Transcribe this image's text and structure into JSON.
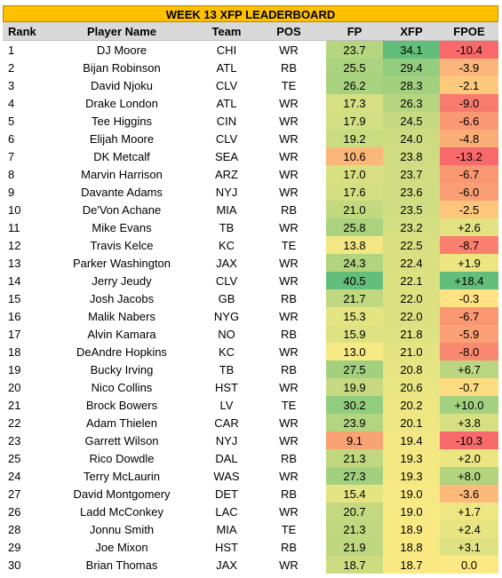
{
  "title": "WEEK 13 XFP LEADERBOARD",
  "columns": [
    "Rank",
    "Player Name",
    "Team",
    "POS",
    "FP",
    "XFP",
    "FPOE"
  ],
  "rows": [
    {
      "rank": "1",
      "player": "DJ Moore",
      "team": "CHI",
      "pos": "WR",
      "fp": "23.7",
      "xfp": "34.1",
      "fpoe": "-10.4",
      "fp_color": "#b5d580",
      "xfp_color": "#63be7b",
      "fpoe_color": "#f8696b"
    },
    {
      "rank": "2",
      "player": "Bijan Robinson",
      "team": "ATL",
      "pos": "RB",
      "fp": "25.5",
      "xfp": "29.4",
      "fpoe": "-3.9",
      "fp_color": "#acd37f",
      "xfp_color": "#95cd7e",
      "fpoe_color": "#fcb57a"
    },
    {
      "rank": "3",
      "player": "David Njoku",
      "team": "CLV",
      "pos": "TE",
      "fp": "26.2",
      "xfp": "28.3",
      "fpoe": "-2.1",
      "fp_color": "#a9d27f",
      "xfp_color": "#a1d07f",
      "fpoe_color": "#fdca7d"
    },
    {
      "rank": "4",
      "player": "Drake London",
      "team": "ATL",
      "pos": "WR",
      "fp": "17.3",
      "xfp": "26.3",
      "fpoe": "-9.0",
      "fp_color": "#d6e082",
      "xfp_color": "#b6d580",
      "fpoe_color": "#f97b6e"
    },
    {
      "rank": "5",
      "player": "Tee Higgins",
      "team": "CIN",
      "pos": "WR",
      "fp": "17.9",
      "xfp": "24.5",
      "fpoe": "-6.6",
      "fp_color": "#d2df82",
      "xfp_color": "#c8da81",
      "fpoe_color": "#fa9873"
    },
    {
      "rank": "6",
      "player": "Elijah Moore",
      "team": "CLV",
      "pos": "WR",
      "fp": "19.2",
      "xfp": "24.0",
      "fpoe": "-4.8",
      "fp_color": "#cbdb81",
      "xfp_color": "#cddc81",
      "fpoe_color": "#fbad78"
    },
    {
      "rank": "7",
      "player": "DK Metcalf",
      "team": "SEA",
      "pos": "WR",
      "fp": "10.6",
      "xfp": "23.8",
      "fpoe": "-13.2",
      "fp_color": "#fbb679",
      "xfp_color": "#cfdc81",
      "fpoe_color": "#f8696b"
    },
    {
      "rank": "8",
      "player": "Marvin Harrison",
      "team": "ARZ",
      "pos": "WR",
      "fp": "17.0",
      "xfp": "23.7",
      "fpoe": "-6.7",
      "fp_color": "#d8e082",
      "xfp_color": "#d0dd82",
      "fpoe_color": "#fa9773"
    },
    {
      "rank": "9",
      "player": "Davante Adams",
      "team": "NYJ",
      "pos": "WR",
      "fp": "17.6",
      "xfp": "23.6",
      "fpoe": "-6.0",
      "fp_color": "#d4df82",
      "xfp_color": "#d1dd82",
      "fpoe_color": "#fa9f75"
    },
    {
      "rank": "10",
      "player": "De'Von Achane",
      "team": "MIA",
      "pos": "RB",
      "fp": "21.0",
      "xfp": "23.5",
      "fpoe": "-2.5",
      "fp_color": "#c3d980",
      "xfp_color": "#d1dd82",
      "fpoe_color": "#fdc67c"
    },
    {
      "rank": "11",
      "player": "Mike Evans",
      "team": "TB",
      "pos": "WR",
      "fp": "25.8",
      "xfp": "23.2",
      "fpoe": "+2.6",
      "fp_color": "#abd27f",
      "xfp_color": "#d4de82",
      "fpoe_color": "#e4e383"
    },
    {
      "rank": "12",
      "player": "Travis Kelce",
      "team": "KC",
      "pos": "TE",
      "fp": "13.8",
      "xfp": "22.5",
      "fpoe": "-8.7",
      "fp_color": "#f2e783",
      "xfp_color": "#d9e082",
      "fpoe_color": "#f97f6f"
    },
    {
      "rank": "13",
      "player": "Parker Washington",
      "team": "JAX",
      "pos": "WR",
      "fp": "24.3",
      "xfp": "22.4",
      "fpoe": "+1.9",
      "fp_color": "#b2d47f",
      "xfp_color": "#dae082",
      "fpoe_color": "#ece582"
    },
    {
      "rank": "14",
      "player": "Jerry Jeudy",
      "team": "CLV",
      "pos": "WR",
      "fp": "40.5",
      "xfp": "22.1",
      "fpoe": "+18.4",
      "fp_color": "#63be7b",
      "xfp_color": "#dce182",
      "fpoe_color": "#63be7b"
    },
    {
      "rank": "15",
      "player": "Josh Jacobs",
      "team": "GB",
      "pos": "RB",
      "fp": "21.7",
      "xfp": "22.0",
      "fpoe": "-0.3",
      "fp_color": "#c0d880",
      "xfp_color": "#dde182",
      "fpoe_color": "#fee283"
    },
    {
      "rank": "16",
      "player": "Malik Nabers",
      "team": "NYG",
      "pos": "WR",
      "fp": "15.3",
      "xfp": "22.0",
      "fpoe": "-6.7",
      "fp_color": "#e5e483",
      "xfp_color": "#dde182",
      "fpoe_color": "#fa9773"
    },
    {
      "rank": "17",
      "player": "Alvin Kamara",
      "team": "NO",
      "pos": "RB",
      "fp": "15.9",
      "xfp": "21.8",
      "fpoe": "-5.9",
      "fp_color": "#dfe283",
      "xfp_color": "#dfe283",
      "fpoe_color": "#fba075"
    },
    {
      "rank": "18",
      "player": "DeAndre Hopkins",
      "team": "KC",
      "pos": "WR",
      "fp": "13.0",
      "xfp": "21.0",
      "fpoe": "-8.0",
      "fp_color": "#f7e983",
      "xfp_color": "#e5e483",
      "fpoe_color": "#f98870"
    },
    {
      "rank": "19",
      "player": "Bucky Irving",
      "team": "TB",
      "pos": "RB",
      "fp": "27.5",
      "xfp": "20.8",
      "fpoe": "+6.7",
      "fp_color": "#a2d07f",
      "xfp_color": "#e7e483",
      "fpoe_color": "#bbd680"
    },
    {
      "rank": "20",
      "player": "Nico Collins",
      "team": "HST",
      "pos": "WR",
      "fp": "19.9",
      "xfp": "20.6",
      "fpoe": "-0.7",
      "fp_color": "#c8da81",
      "xfp_color": "#e9e583",
      "fpoe_color": "#fedc82"
    },
    {
      "rank": "21",
      "player": "Brock Bowers",
      "team": "LV",
      "pos": "TE",
      "fp": "30.2",
      "xfp": "20.2",
      "fpoe": "+10.0",
      "fp_color": "#92cc7e",
      "xfp_color": "#ede682",
      "fpoe_color": "#a4d17f"
    },
    {
      "rank": "22",
      "player": "Adam Thielen",
      "team": "CAR",
      "pos": "WR",
      "fp": "23.9",
      "xfp": "20.1",
      "fpoe": "+3.8",
      "fp_color": "#b4d580",
      "xfp_color": "#ede682",
      "fpoe_color": "#d6df82"
    },
    {
      "rank": "23",
      "player": "Garrett Wilson",
      "team": "NYJ",
      "pos": "WR",
      "fp": "9.1",
      "xfp": "19.4",
      "fpoe": "-10.3",
      "fp_color": "#f9a273",
      "xfp_color": "#f3e883",
      "fpoe_color": "#f8696b"
    },
    {
      "rank": "25",
      "player": "Rico Dowdle",
      "team": "DAL",
      "pos": "RB",
      "fp": "21.3",
      "xfp": "19.3",
      "fpoe": "+2.0",
      "fp_color": "#c2d880",
      "xfp_color": "#f4e883",
      "fpoe_color": "#ebe582"
    },
    {
      "rank": "24",
      "player": "Terry McLaurin",
      "team": "WAS",
      "pos": "WR",
      "fp": "27.3",
      "xfp": "19.3",
      "fpoe": "+8.0",
      "fp_color": "#a3d07f",
      "xfp_color": "#f4e883",
      "fpoe_color": "#b2d47f"
    },
    {
      "rank": "27",
      "player": "David Montgomery",
      "team": "DET",
      "pos": "RB",
      "fp": "15.4",
      "xfp": "19.0",
      "fpoe": "-3.6",
      "fp_color": "#e4e483",
      "xfp_color": "#f7e983",
      "fpoe_color": "#fcb979"
    },
    {
      "rank": "26",
      "player": "Ladd McConkey",
      "team": "LAC",
      "pos": "WR",
      "fp": "20.7",
      "xfp": "19.0",
      "fpoe": "+1.7",
      "fp_color": "#c4d980",
      "xfp_color": "#f7e983",
      "fpoe_color": "#ede682"
    },
    {
      "rank": "28",
      "player": "Jonnu Smith",
      "team": "MIA",
      "pos": "TE",
      "fp": "21.3",
      "xfp": "18.9",
      "fpoe": "+2.4",
      "fp_color": "#c2d880",
      "xfp_color": "#f8e983",
      "fpoe_color": "#e7e483"
    },
    {
      "rank": "29",
      "player": "Joe Mixon",
      "team": "HST",
      "pos": "RB",
      "fp": "21.9",
      "xfp": "18.8",
      "fpoe": "+3.1",
      "fp_color": "#bed780",
      "xfp_color": "#f9e983",
      "fpoe_color": "#dfe283"
    },
    {
      "rank": "30",
      "player": "Brian Thomas",
      "team": "JAX",
      "pos": "WR",
      "fp": "18.7",
      "xfp": "18.7",
      "fpoe": "0.0",
      "fp_color": "#cedc81",
      "xfp_color": "#fae983",
      "fpoe_color": "#fbe983"
    }
  ]
}
